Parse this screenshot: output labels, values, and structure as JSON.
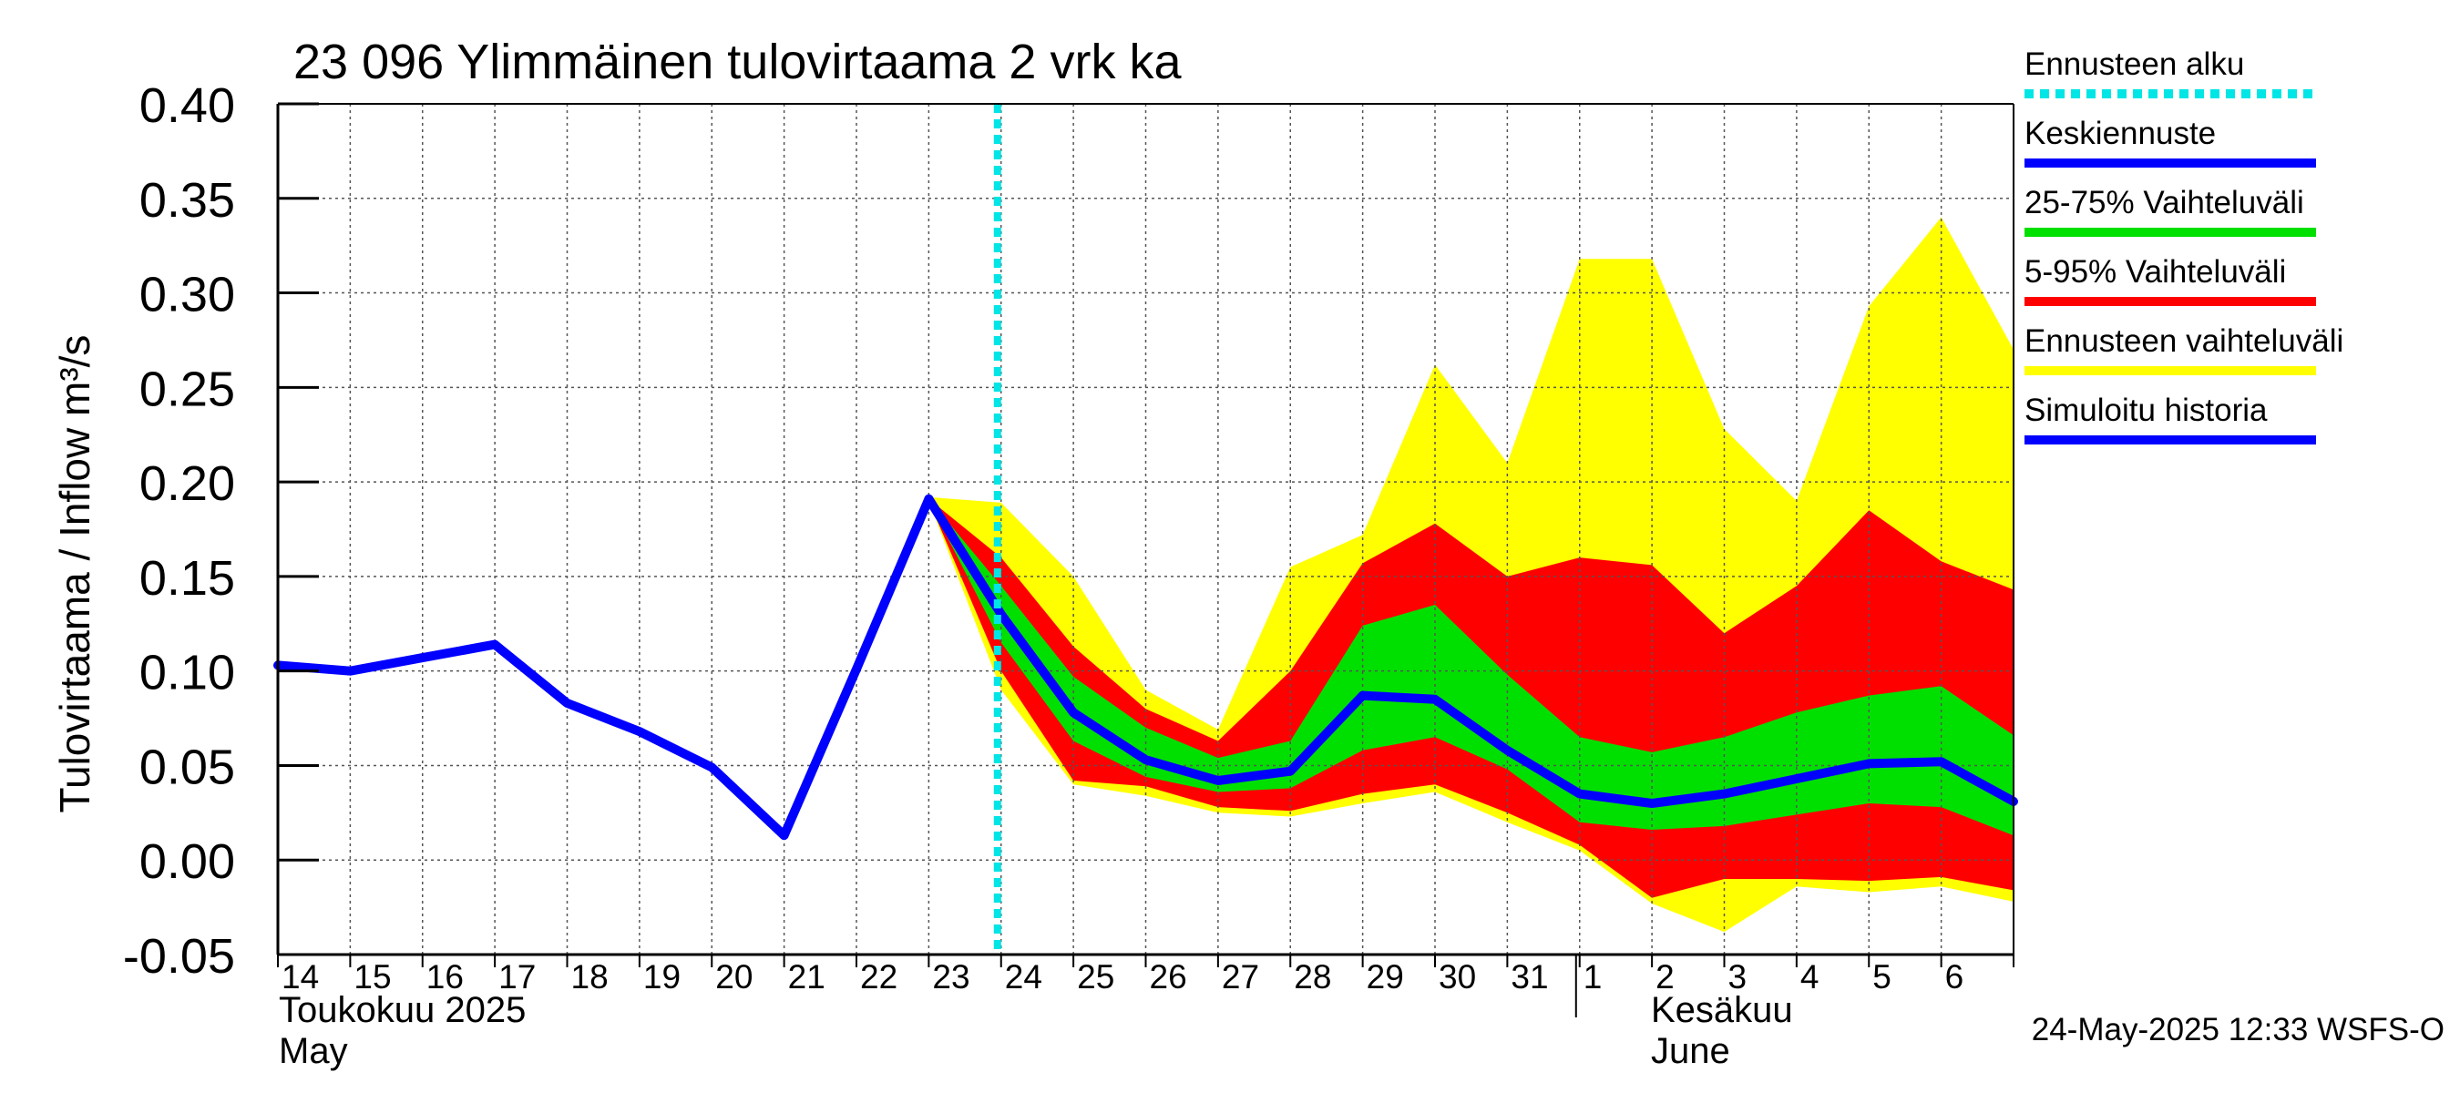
{
  "chart_data": {
    "type": "area",
    "title": "23 096 Ylimmäinen tulovirtaama 2 vrk ka",
    "ylabel": "Tulovirtaama / Inflow   m³/s",
    "ylim": [
      -0.05,
      0.4
    ],
    "yticks": [
      "0.40",
      "0.35",
      "0.30",
      "0.25",
      "0.20",
      "0.15",
      "0.10",
      "0.05",
      "0.00",
      "-0.05"
    ],
    "yticks_values": [
      0.4,
      0.35,
      0.3,
      0.25,
      0.2,
      0.15,
      0.1,
      0.05,
      0.0,
      -0.05
    ],
    "x_day_range": [
      0,
      24
    ],
    "x_tick_labels": [
      "14",
      "15",
      "16",
      "17",
      "18",
      "19",
      "20",
      "21",
      "22",
      "23",
      "24",
      "25",
      "26",
      "27",
      "28",
      "29",
      "30",
      "31",
      "1",
      "2",
      "3",
      "4",
      "5",
      "6"
    ],
    "month_labels": {
      "may_fi": "Toukokuu  2025",
      "may_en": "May",
      "june_fi": "Kesäkuu",
      "june_en": "June"
    },
    "forecast_start_day": 9.95,
    "grid": true,
    "legend": [
      {
        "label": "Ennusteen alku",
        "color": "#00e5e5",
        "style": "dotted"
      },
      {
        "label": "Keskiennuste",
        "color": "#0000ff",
        "style": "solid"
      },
      {
        "label": "25-75% Vaihteluväli",
        "color": "#00e000",
        "style": "solid"
      },
      {
        "label": "5-95% Vaihteluväli",
        "color": "#ff0000",
        "style": "solid"
      },
      {
        "label": "Ennusteen vaihteluväli",
        "color": "#ffff00",
        "style": "solid"
      },
      {
        "label": "Simuloitu historia",
        "color": "#0000ff",
        "style": "solid"
      }
    ],
    "forecast_days": [
      9,
      10,
      11,
      12,
      13,
      14,
      15,
      16,
      17,
      18,
      19,
      20,
      21,
      22,
      23,
      24
    ],
    "series": [
      {
        "name": "Simuloitu historia",
        "x": [
          0,
          1,
          2,
          3,
          4,
          5,
          6,
          7,
          8,
          9
        ],
        "values": [
          0.103,
          0.1,
          0.107,
          0.114,
          0.083,
          0.068,
          0.049,
          0.013,
          0.101,
          0.191
        ]
      },
      {
        "name": "Keskiennuste",
        "values": [
          0.191,
          0.13,
          0.078,
          0.053,
          0.042,
          0.047,
          0.087,
          0.085,
          0.058,
          0.035,
          0.03,
          0.035,
          0.043,
          0.051,
          0.052,
          0.031
        ]
      },
      {
        "name": "Ennusteen vaihteluväli max",
        "values": [
          0.192,
          0.189,
          0.15,
          0.09,
          0.069,
          0.155,
          0.172,
          0.262,
          0.21,
          0.318,
          0.318,
          0.228,
          0.19,
          0.293,
          0.34,
          0.27
        ]
      },
      {
        "name": "Ennusteen vaihteluväli min",
        "values": [
          0.19,
          0.09,
          0.04,
          0.034,
          0.025,
          0.023,
          0.03,
          0.036,
          0.02,
          0.005,
          -0.023,
          -0.038,
          -0.014,
          -0.017,
          -0.014,
          -0.022
        ]
      },
      {
        "name": "5-95% Vaihteluväli upper",
        "values": [
          0.191,
          0.16,
          0.113,
          0.08,
          0.063,
          0.1,
          0.157,
          0.178,
          0.15,
          0.16,
          0.156,
          0.12,
          0.145,
          0.185,
          0.158,
          0.143
        ]
      },
      {
        "name": "5-95% Vaihteluväli lower",
        "values": [
          0.19,
          0.1,
          0.042,
          0.039,
          0.028,
          0.026,
          0.035,
          0.04,
          0.025,
          0.008,
          -0.02,
          -0.01,
          -0.01,
          -0.011,
          -0.009,
          -0.016
        ]
      },
      {
        "name": "25-75% Vaihteluväli upper",
        "values": [
          0.191,
          0.145,
          0.097,
          0.07,
          0.054,
          0.063,
          0.124,
          0.135,
          0.098,
          0.065,
          0.057,
          0.065,
          0.078,
          0.087,
          0.092,
          0.066
        ]
      },
      {
        "name": "25-75% Vaihteluväli lower",
        "values": [
          0.19,
          0.115,
          0.063,
          0.044,
          0.036,
          0.038,
          0.058,
          0.065,
          0.048,
          0.02,
          0.016,
          0.018,
          0.024,
          0.03,
          0.028,
          0.013
        ]
      }
    ]
  },
  "footer": {
    "timestamp": "24-May-2025 12:33 WSFS-O"
  }
}
